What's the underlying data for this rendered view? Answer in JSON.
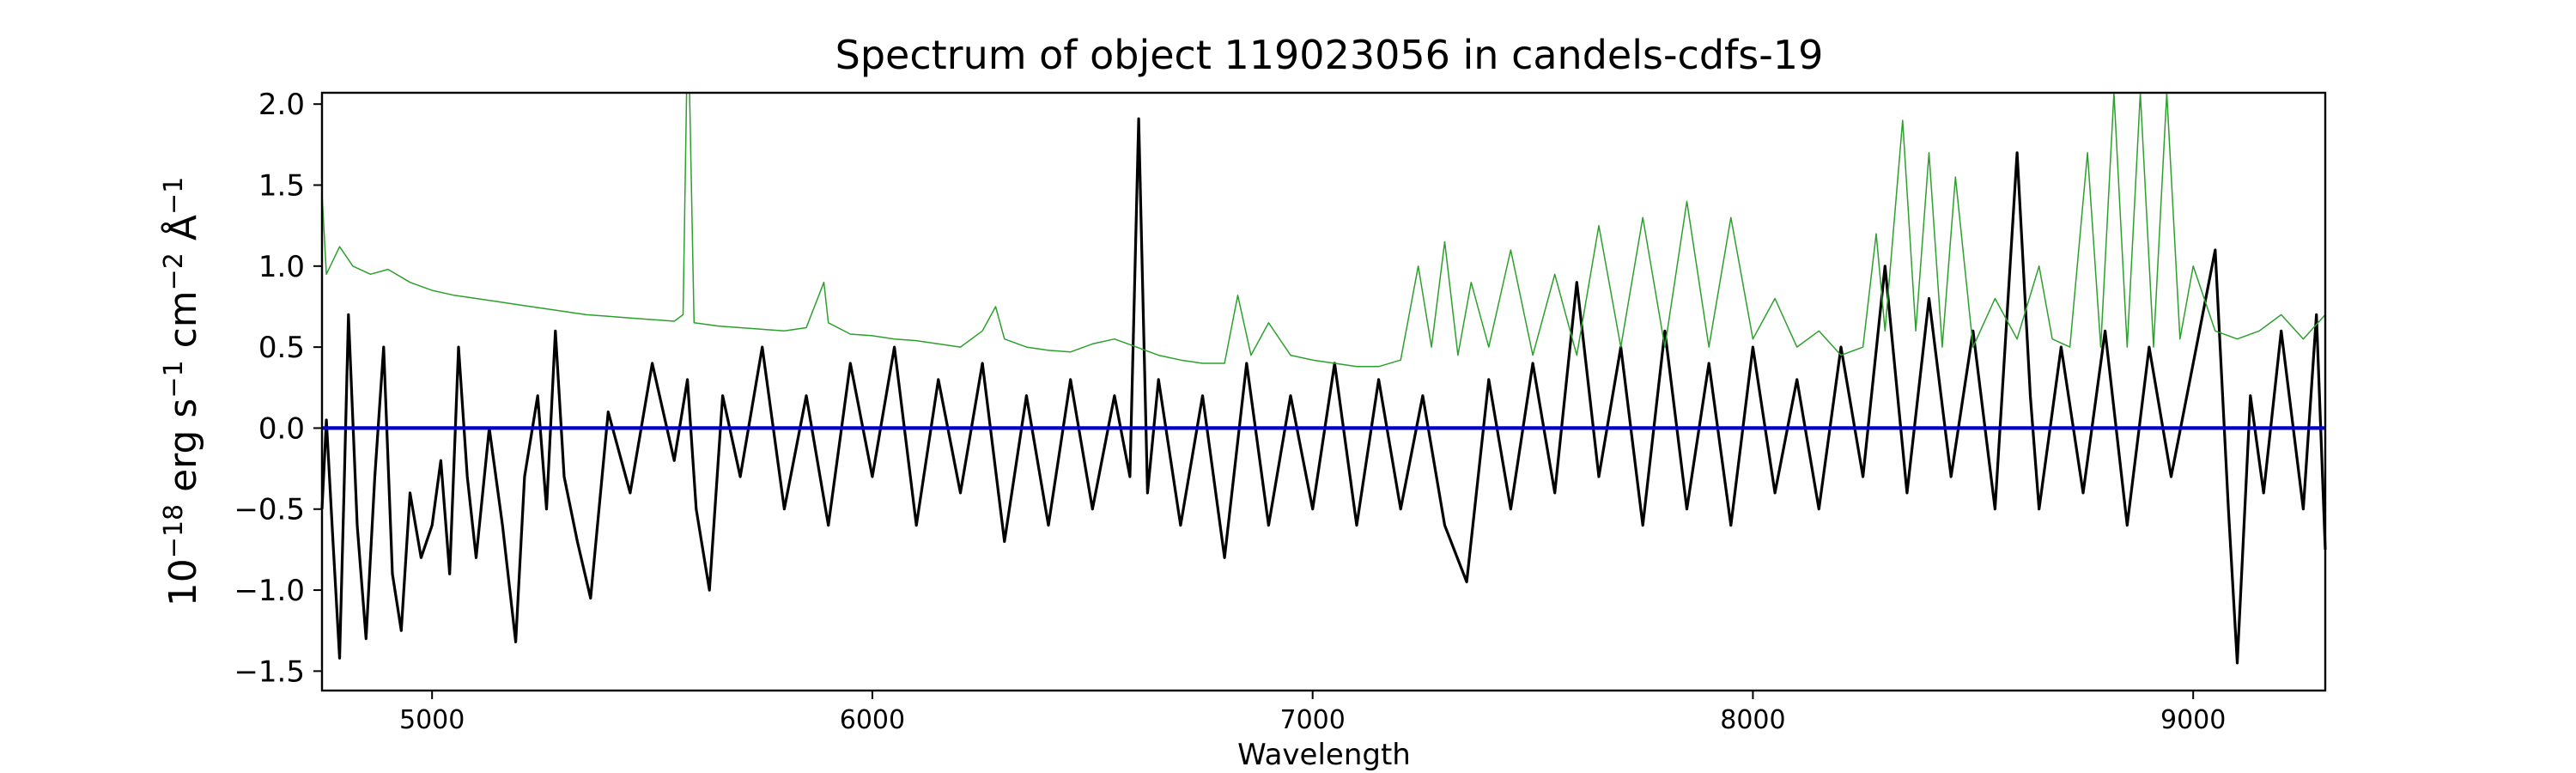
{
  "chart_data": {
    "type": "line",
    "title": "Spectrum of object 119023056 in candels-cdfs-19",
    "xlabel": "Wavelength",
    "ylabel": {
      "prefix": "10",
      "exponent_1": "−18",
      "unit_1": " erg s",
      "exponent_2": "−1",
      "unit_2": " cm",
      "exponent_3": "−2",
      "unit_3": " Å",
      "exponent_4": "−1"
    },
    "xlim": [
      4750,
      9300
    ],
    "ylim": [
      -1.62,
      2.07
    ],
    "x_ticks": [
      5000,
      6000,
      7000,
      8000,
      9000
    ],
    "y_ticks": [
      2.0,
      1.5,
      1.0,
      0.5,
      0.0,
      -0.5,
      -1.0,
      -1.5
    ],
    "x_tick_labels": [
      "5000",
      "6000",
      "7000",
      "8000",
      "9000"
    ],
    "y_tick_labels": [
      "2.0",
      "1.5",
      "1.0",
      "0.5",
      "0.0",
      "−0.5",
      "−1.0",
      "−1.5"
    ],
    "grid": false,
    "legend": "none",
    "series": [
      {
        "color": "#000000",
        "style": "noisy spectrum",
        "points": [
          [
            4750,
            -0.5
          ],
          [
            4760,
            0.05
          ],
          [
            4775,
            -0.7
          ],
          [
            4790,
            -1.42
          ],
          [
            4800,
            -0.4
          ],
          [
            4810,
            0.7
          ],
          [
            4830,
            -0.6
          ],
          [
            4850,
            -1.3
          ],
          [
            4870,
            -0.3
          ],
          [
            4890,
            0.5
          ],
          [
            4910,
            -0.9
          ],
          [
            4930,
            -1.25
          ],
          [
            4950,
            -0.4
          ],
          [
            4975,
            -0.8
          ],
          [
            5000,
            -0.6
          ],
          [
            5020,
            -0.2
          ],
          [
            5040,
            -0.9
          ],
          [
            5060,
            0.5
          ],
          [
            5080,
            -0.3
          ],
          [
            5100,
            -0.8
          ],
          [
            5130,
            0.0
          ],
          [
            5160,
            -0.6
          ],
          [
            5190,
            -1.32
          ],
          [
            5210,
            -0.3
          ],
          [
            5240,
            0.2
          ],
          [
            5260,
            -0.5
          ],
          [
            5280,
            0.6
          ],
          [
            5300,
            -0.3
          ],
          [
            5330,
            -0.7
          ],
          [
            5360,
            -1.05
          ],
          [
            5400,
            0.1
          ],
          [
            5450,
            -0.4
          ],
          [
            5500,
            0.4
          ],
          [
            5550,
            -0.2
          ],
          [
            5580,
            0.3
          ],
          [
            5600,
            -0.5
          ],
          [
            5630,
            -1.0
          ],
          [
            5660,
            0.2
          ],
          [
            5700,
            -0.3
          ],
          [
            5750,
            0.5
          ],
          [
            5800,
            -0.5
          ],
          [
            5850,
            0.2
          ],
          [
            5900,
            -0.6
          ],
          [
            5950,
            0.4
          ],
          [
            6000,
            -0.3
          ],
          [
            6050,
            0.5
          ],
          [
            6100,
            -0.6
          ],
          [
            6150,
            0.3
          ],
          [
            6200,
            -0.4
          ],
          [
            6250,
            0.4
          ],
          [
            6300,
            -0.7
          ],
          [
            6350,
            0.2
          ],
          [
            6400,
            -0.6
          ],
          [
            6450,
            0.3
          ],
          [
            6500,
            -0.5
          ],
          [
            6550,
            0.2
          ],
          [
            6585,
            -0.3
          ],
          [
            6605,
            1.91
          ],
          [
            6625,
            -0.4
          ],
          [
            6650,
            0.3
          ],
          [
            6700,
            -0.6
          ],
          [
            6750,
            0.2
          ],
          [
            6800,
            -0.8
          ],
          [
            6850,
            0.4
          ],
          [
            6900,
            -0.6
          ],
          [
            6950,
            0.2
          ],
          [
            7000,
            -0.5
          ],
          [
            7050,
            0.4
          ],
          [
            7100,
            -0.6
          ],
          [
            7150,
            0.3
          ],
          [
            7200,
            -0.5
          ],
          [
            7250,
            0.2
          ],
          [
            7300,
            -0.6
          ],
          [
            7350,
            -0.95
          ],
          [
            7400,
            0.3
          ],
          [
            7450,
            -0.5
          ],
          [
            7500,
            0.4
          ],
          [
            7550,
            -0.4
          ],
          [
            7600,
            0.9
          ],
          [
            7650,
            -0.3
          ],
          [
            7700,
            0.5
          ],
          [
            7750,
            -0.6
          ],
          [
            7800,
            0.6
          ],
          [
            7850,
            -0.5
          ],
          [
            7900,
            0.4
          ],
          [
            7950,
            -0.6
          ],
          [
            8000,
            0.5
          ],
          [
            8050,
            -0.4
          ],
          [
            8100,
            0.3
          ],
          [
            8150,
            -0.5
          ],
          [
            8200,
            0.5
          ],
          [
            8250,
            -0.3
          ],
          [
            8300,
            1.0
          ],
          [
            8350,
            -0.4
          ],
          [
            8400,
            0.8
          ],
          [
            8450,
            -0.3
          ],
          [
            8500,
            0.6
          ],
          [
            8550,
            -0.5
          ],
          [
            8600,
            1.7
          ],
          [
            8630,
            0.2
          ],
          [
            8650,
            -0.5
          ],
          [
            8700,
            0.5
          ],
          [
            8750,
            -0.4
          ],
          [
            8800,
            0.6
          ],
          [
            8850,
            -0.6
          ],
          [
            8900,
            0.5
          ],
          [
            8950,
            -0.3
          ],
          [
            9000,
            0.4
          ],
          [
            9050,
            1.1
          ],
          [
            9080,
            -0.5
          ],
          [
            9100,
            -1.45
          ],
          [
            9130,
            0.2
          ],
          [
            9160,
            -0.4
          ],
          [
            9200,
            0.6
          ],
          [
            9250,
            -0.5
          ],
          [
            9280,
            0.7
          ],
          [
            9300,
            -0.75
          ]
        ]
      },
      {
        "color": "#2ca02c",
        "style": "error spectrum",
        "points": [
          [
            4750,
            1.45
          ],
          [
            4760,
            0.95
          ],
          [
            4790,
            1.12
          ],
          [
            4820,
            1.0
          ],
          [
            4860,
            0.95
          ],
          [
            4900,
            0.98
          ],
          [
            4950,
            0.9
          ],
          [
            5000,
            0.85
          ],
          [
            5050,
            0.82
          ],
          [
            5100,
            0.8
          ],
          [
            5150,
            0.78
          ],
          [
            5200,
            0.76
          ],
          [
            5250,
            0.74
          ],
          [
            5300,
            0.72
          ],
          [
            5350,
            0.7
          ],
          [
            5400,
            0.69
          ],
          [
            5450,
            0.68
          ],
          [
            5500,
            0.67
          ],
          [
            5550,
            0.66
          ],
          [
            5570,
            0.7
          ],
          [
            5578,
            2.07
          ],
          [
            5585,
            2.07
          ],
          [
            5595,
            0.65
          ],
          [
            5650,
            0.63
          ],
          [
            5700,
            0.62
          ],
          [
            5750,
            0.61
          ],
          [
            5800,
            0.6
          ],
          [
            5850,
            0.62
          ],
          [
            5890,
            0.9
          ],
          [
            5900,
            0.65
          ],
          [
            5950,
            0.58
          ],
          [
            6000,
            0.57
          ],
          [
            6050,
            0.55
          ],
          [
            6100,
            0.54
          ],
          [
            6150,
            0.52
          ],
          [
            6200,
            0.5
          ],
          [
            6250,
            0.6
          ],
          [
            6280,
            0.75
          ],
          [
            6300,
            0.55
          ],
          [
            6350,
            0.5
          ],
          [
            6400,
            0.48
          ],
          [
            6450,
            0.47
          ],
          [
            6500,
            0.52
          ],
          [
            6550,
            0.55
          ],
          [
            6600,
            0.5
          ],
          [
            6650,
            0.45
          ],
          [
            6700,
            0.42
          ],
          [
            6750,
            0.4
          ],
          [
            6800,
            0.4
          ],
          [
            6830,
            0.82
          ],
          [
            6860,
            0.45
          ],
          [
            6900,
            0.65
          ],
          [
            6950,
            0.45
          ],
          [
            7000,
            0.42
          ],
          [
            7050,
            0.4
          ],
          [
            7100,
            0.38
          ],
          [
            7150,
            0.38
          ],
          [
            7200,
            0.42
          ],
          [
            7240,
            1.0
          ],
          [
            7270,
            0.5
          ],
          [
            7300,
            1.15
          ],
          [
            7330,
            0.45
          ],
          [
            7360,
            0.9
          ],
          [
            7400,
            0.5
          ],
          [
            7450,
            1.1
          ],
          [
            7500,
            0.45
          ],
          [
            7550,
            0.95
          ],
          [
            7600,
            0.45
          ],
          [
            7650,
            1.25
          ],
          [
            7700,
            0.5
          ],
          [
            7750,
            1.3
          ],
          [
            7800,
            0.5
          ],
          [
            7850,
            1.4
          ],
          [
            7900,
            0.5
          ],
          [
            7950,
            1.3
          ],
          [
            8000,
            0.55
          ],
          [
            8050,
            0.8
          ],
          [
            8100,
            0.5
          ],
          [
            8150,
            0.6
          ],
          [
            8200,
            0.45
          ],
          [
            8250,
            0.5
          ],
          [
            8280,
            1.2
          ],
          [
            8300,
            0.6
          ],
          [
            8340,
            1.9
          ],
          [
            8370,
            0.6
          ],
          [
            8400,
            1.7
          ],
          [
            8430,
            0.5
          ],
          [
            8460,
            1.55
          ],
          [
            8500,
            0.5
          ],
          [
            8550,
            0.8
          ],
          [
            8600,
            0.55
          ],
          [
            8650,
            1.0
          ],
          [
            8680,
            0.55
          ],
          [
            8720,
            0.5
          ],
          [
            8760,
            1.7
          ],
          [
            8790,
            0.5
          ],
          [
            8820,
            2.07
          ],
          [
            8850,
            0.5
          ],
          [
            8880,
            2.07
          ],
          [
            8910,
            0.5
          ],
          [
            8940,
            2.07
          ],
          [
            8970,
            0.55
          ],
          [
            9000,
            1.0
          ],
          [
            9050,
            0.6
          ],
          [
            9100,
            0.55
          ],
          [
            9150,
            0.6
          ],
          [
            9200,
            0.7
          ],
          [
            9250,
            0.55
          ],
          [
            9300,
            0.7
          ]
        ]
      },
      {
        "color": "#0000cc",
        "style": "zero line",
        "points": [
          [
            4750,
            0.0
          ],
          [
            9300,
            0.0
          ]
        ]
      }
    ]
  }
}
